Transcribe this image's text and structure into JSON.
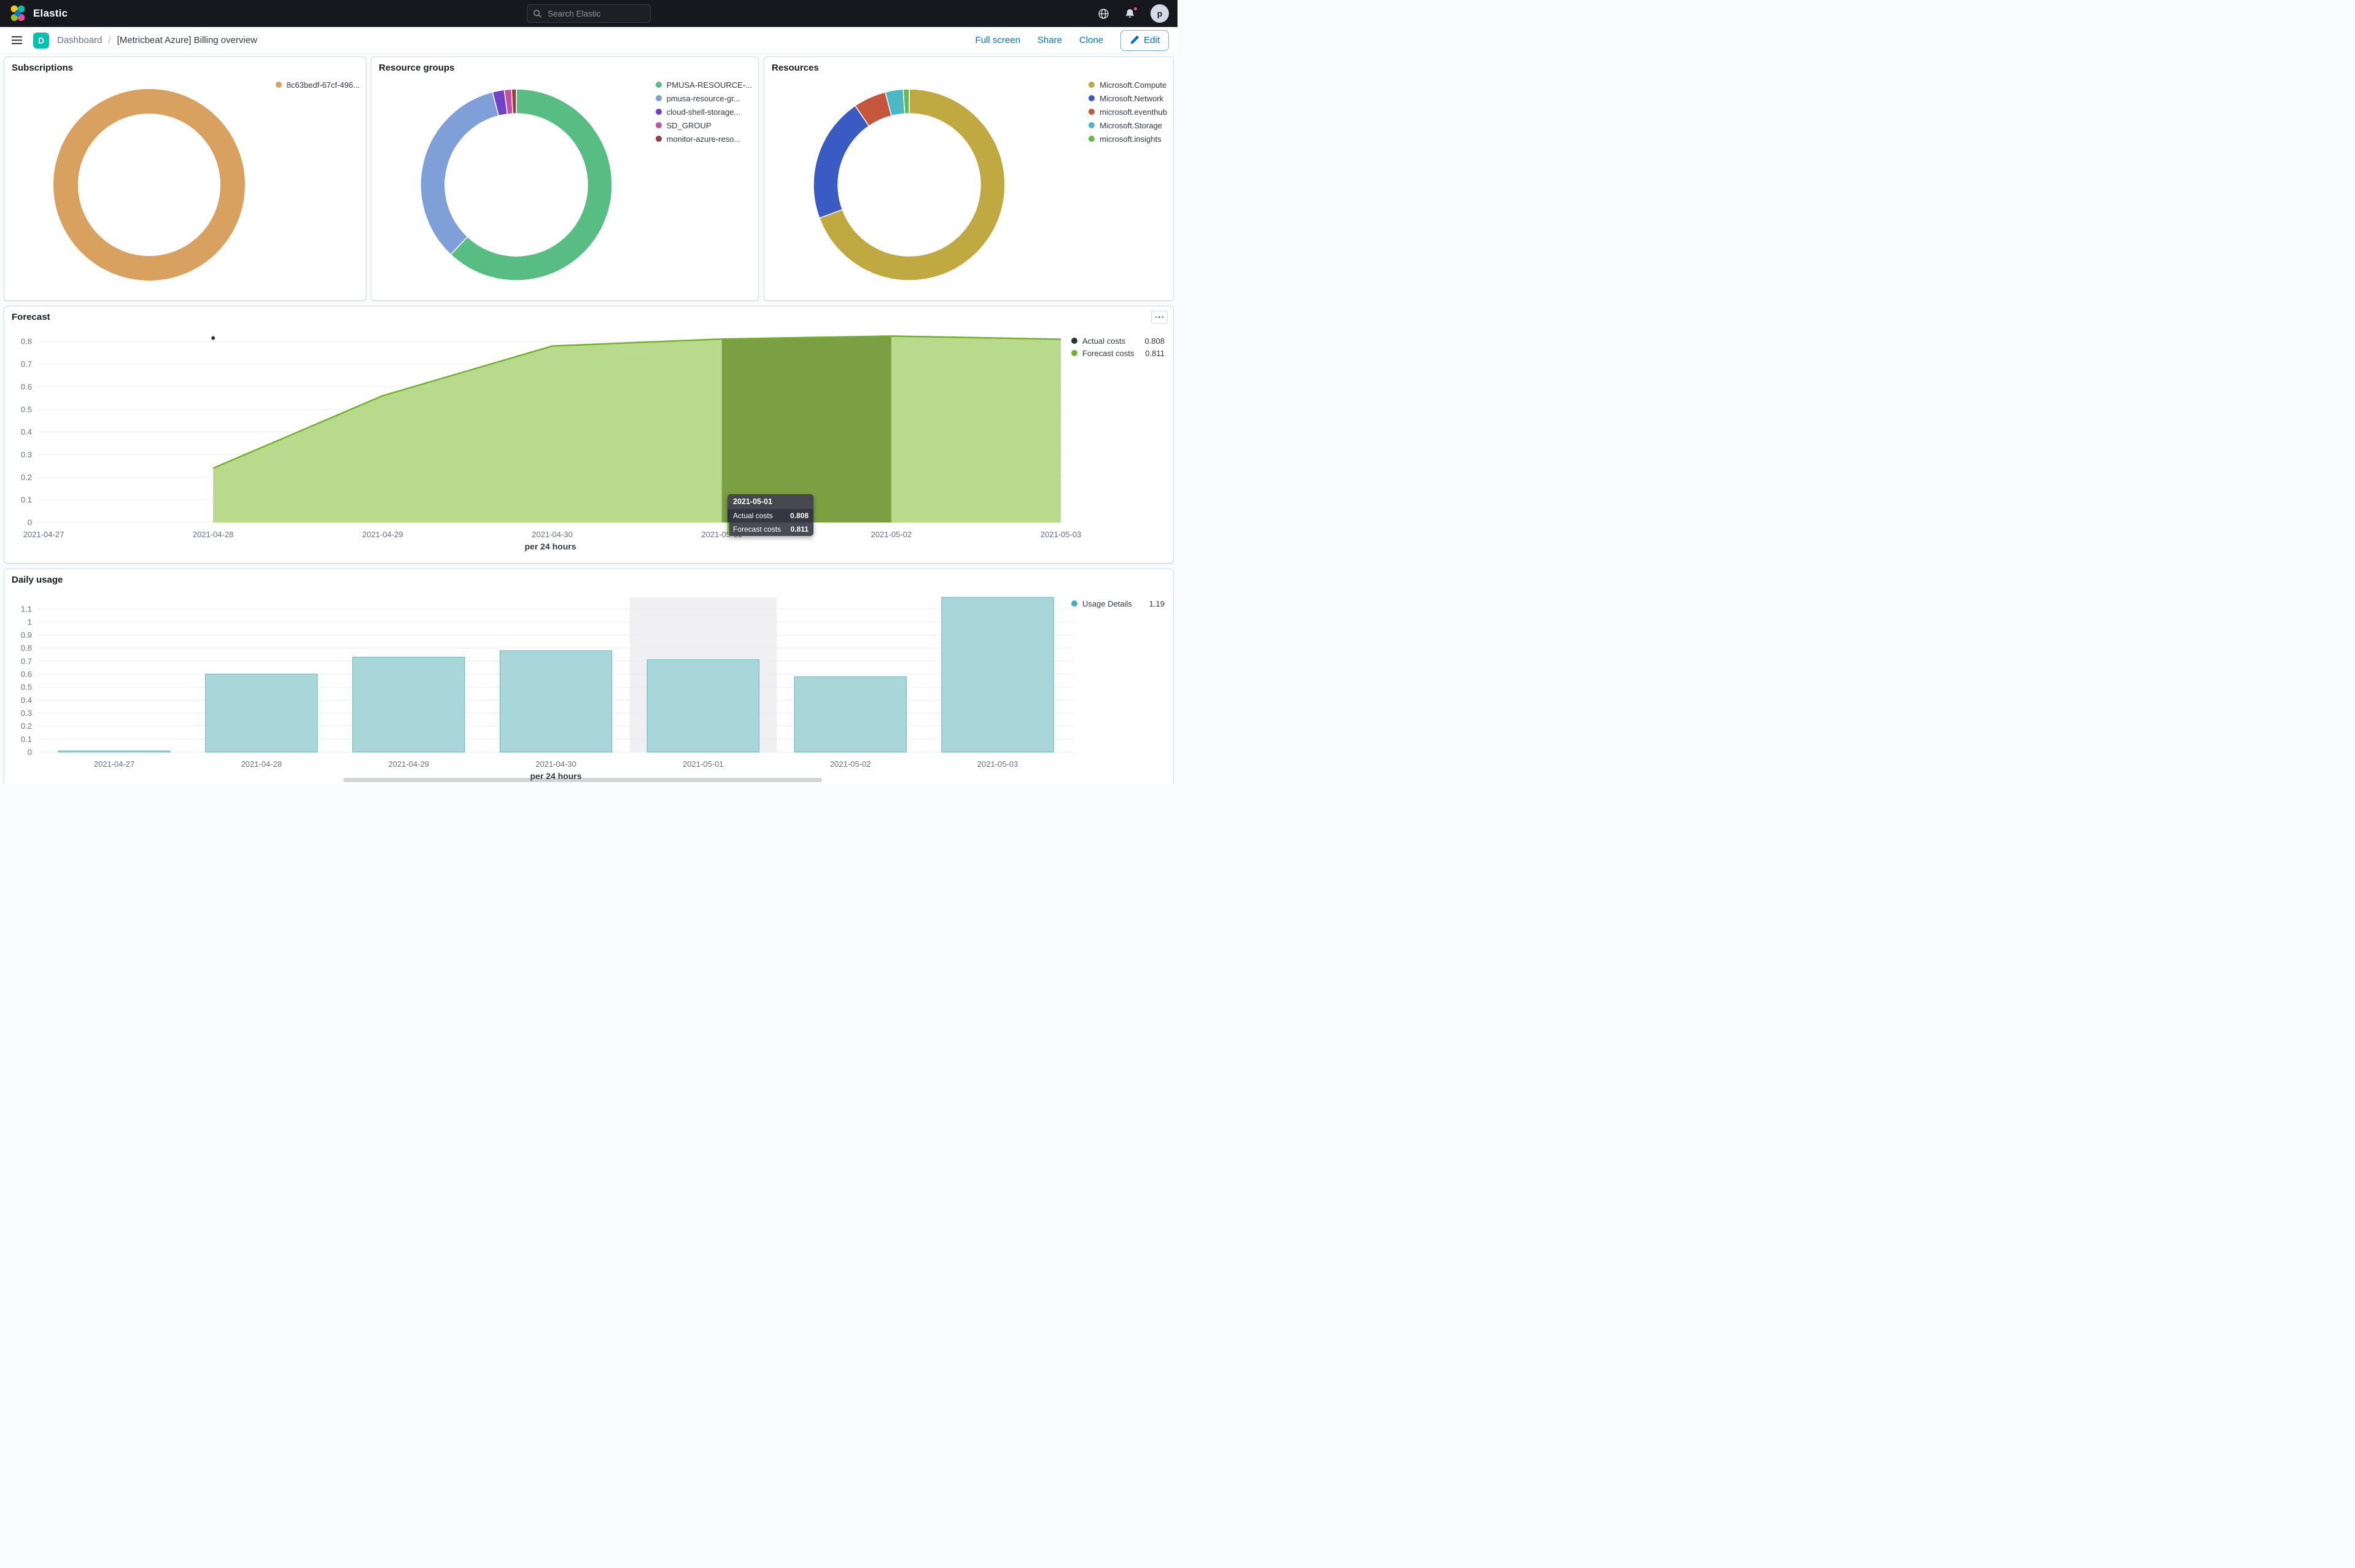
{
  "header": {
    "brand": "Elastic",
    "search_placeholder": "Search Elastic",
    "avatar_initial": "p"
  },
  "nav": {
    "space_initial": "D",
    "breadcrumbs": [
      "Dashboard",
      "[Metricbeat Azure] Billing overview"
    ],
    "breadcrumb_separator": "/",
    "actions": {
      "full_screen": "Full screen",
      "share": "Share",
      "clone": "Clone",
      "edit": "Edit"
    }
  },
  "colors": {
    "accent_blue": "#0071c2",
    "header_bg": "#17181d",
    "panel_border": "#d3dae6",
    "notification_dot": "#f04e98",
    "space_badge": "#00bfb3"
  },
  "chart_data": [
    {
      "type": "pie",
      "title": "Subscriptions",
      "slices": [
        {
          "label": "8c63bedf-67cf-496...",
          "value": 100,
          "color": "#d9a15f"
        }
      ]
    },
    {
      "type": "pie",
      "title": "Resource groups",
      "slices": [
        {
          "label": "PMUSA-RESOURCE-...",
          "value": 62,
          "color": "#58bd83"
        },
        {
          "label": "pmusa-resource-gr...",
          "value": 34,
          "color": "#7e9fd8"
        },
        {
          "label": "cloud-shell-storage...",
          "value": 2,
          "color": "#6f42c8"
        },
        {
          "label": "SD_GROUP",
          "value": 1.2,
          "color": "#c24ea6"
        },
        {
          "label": "monitor-azure-reso...",
          "value": 0.8,
          "color": "#9b3a38"
        }
      ]
    },
    {
      "type": "pie",
      "title": "Resources",
      "slices": [
        {
          "label": "Microsoft.Compute",
          "value": 69,
          "color": "#bfa940"
        },
        {
          "label": "Microsoft.Network",
          "value": 21,
          "color": "#3b5bc4"
        },
        {
          "label": "microsoft.eventhub",
          "value": 5.5,
          "color": "#c4563e"
        },
        {
          "label": "Microsoft.Storage",
          "value": 3,
          "color": "#4cb8c4"
        },
        {
          "label": "microsoft.insights",
          "value": 1,
          "color": "#62bb54"
        }
      ]
    },
    {
      "type": "area",
      "title": "Forecast",
      "categories": [
        "2021-04-27",
        "2021-04-28",
        "2021-04-29",
        "2021-04-30",
        "2021-05-01",
        "2021-05-02",
        "2021-05-03"
      ],
      "series": [
        {
          "name": "Forecast costs",
          "color": "#74b02c",
          "fill": "#b7da8c",
          "values": [
            null,
            0.24,
            0.56,
            0.78,
            0.811,
            0.824,
            0.81
          ]
        },
        {
          "name": "Actual costs",
          "color": "#1e3b33",
          "render": "points",
          "values": [
            null,
            0.815,
            null,
            null,
            null,
            null,
            null
          ]
        }
      ],
      "highlight_band": {
        "from": "2021-05-01",
        "to": "2021-05-02",
        "color": "#7ba044"
      },
      "yticks": [
        0,
        0.1,
        0.2,
        0.3,
        0.4,
        0.5,
        0.6,
        0.7,
        0.8
      ],
      "ylim": [
        0,
        0.825
      ],
      "xlabel": "per 24 hours",
      "legend": [
        {
          "label": "Actual costs",
          "value": "0.808",
          "color": "#1e3b33"
        },
        {
          "label": "Forecast costs",
          "value": "0.811",
          "color": "#74b02c"
        }
      ],
      "tooltip": {
        "header": "2021-05-01",
        "rows": [
          {
            "label": "Actual costs",
            "value": "0.808",
            "color": "#1e3b33",
            "highlighted": false
          },
          {
            "label": "Forecast costs",
            "value": "0.811",
            "color": "#74b02c",
            "highlighted": true
          }
        ]
      }
    },
    {
      "type": "bar",
      "title": "Daily usage",
      "categories": [
        "2021-04-27",
        "2021-04-28",
        "2021-04-29",
        "2021-04-30",
        "2021-05-01",
        "2021-05-02",
        "2021-05-03"
      ],
      "values": [
        0.005,
        0.6,
        0.73,
        0.78,
        0.71,
        0.58,
        1.19
      ],
      "bar_color": "#a9d7d9",
      "bar_stroke": "#62b6be",
      "highlight_index": 4,
      "highlight_color": "rgba(105,112,125,0.10)",
      "yticks": [
        0,
        0.1,
        0.2,
        0.3,
        0.4,
        0.5,
        0.6,
        0.7,
        0.8,
        0.9,
        1,
        1.1
      ],
      "ylim": [
        0,
        1.19
      ],
      "xlabel": "per 24 hours",
      "legend": [
        {
          "label": "Usage Details",
          "value": "1.19",
          "color": "#47aeb9"
        }
      ]
    }
  ]
}
